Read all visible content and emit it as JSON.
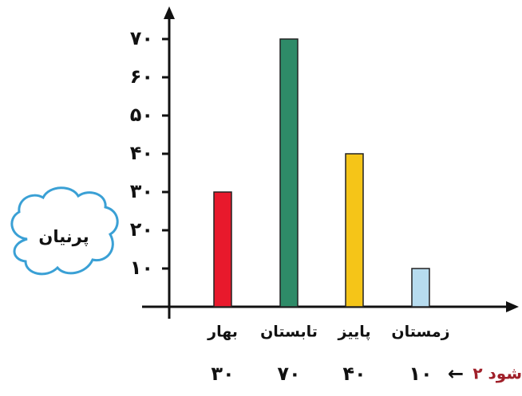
{
  "chart_data": {
    "type": "bar",
    "categories": [
      "بهار",
      "تابستان",
      "پاییز",
      "زمستان"
    ],
    "values": [
      30,
      70,
      40,
      10
    ],
    "colors": [
      "#e8192c",
      "#2e8b68",
      "#f5c518",
      "#b7dcef"
    ],
    "yticks": [
      "۱۰",
      "۲۰",
      "۳۰",
      "۴۰",
      "۵۰",
      "۶۰",
      "۷۰"
    ],
    "ytick_values": [
      10,
      20,
      30,
      40,
      50,
      60,
      70
    ],
    "ylim": [
      0,
      70
    ],
    "title": "",
    "xlabel": "",
    "ylabel": "",
    "grid": false
  },
  "cloud_label": "پرنیان",
  "value_row": {
    "values_text": [
      "۳۰",
      "۷۰",
      "۴۰",
      "۱۰"
    ],
    "arrow": "←",
    "note": "۲ شود",
    "note_color": "#a0202a"
  }
}
